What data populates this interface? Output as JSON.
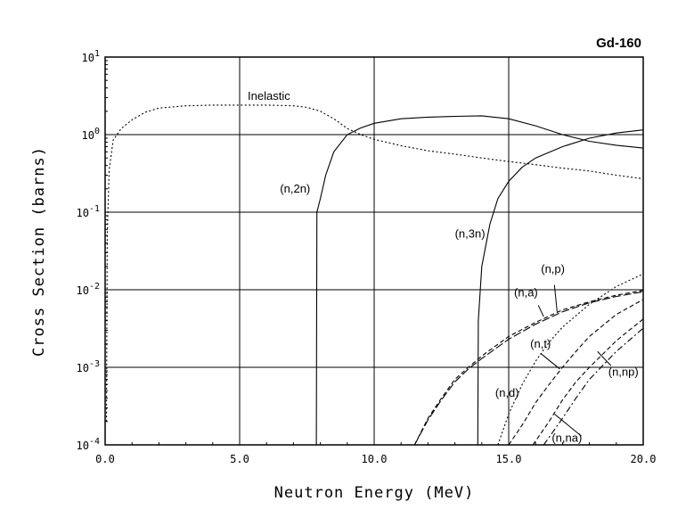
{
  "chart_data": {
    "type": "line",
    "title": "Gd-160",
    "xlabel": "Neutron Energy (MeV)",
    "ylabel": "Cross Section (barns)",
    "xlim": [
      0,
      20
    ],
    "ylim": [
      0.0001,
      10
    ],
    "yscale": "log",
    "grid": true,
    "x_ticks": [
      {
        "value": 0,
        "label": "0.0"
      },
      {
        "value": 5,
        "label": "5.0"
      },
      {
        "value": 10,
        "label": "10.0"
      },
      {
        "value": 15,
        "label": "15.0"
      },
      {
        "value": 20,
        "label": "20.0"
      }
    ],
    "y_ticks": [
      {
        "value": 0.0001,
        "mantissa": "10",
        "exponent": "-4"
      },
      {
        "value": 0.001,
        "mantissa": "10",
        "exponent": "-3"
      },
      {
        "value": 0.01,
        "mantissa": "10",
        "exponent": "-2"
      },
      {
        "value": 0.1,
        "mantissa": "10",
        "exponent": "-1"
      },
      {
        "value": 1,
        "mantissa": "10",
        "exponent": "0"
      },
      {
        "value": 10,
        "mantissa": "10",
        "exponent": "1"
      }
    ],
    "series": [
      {
        "name": "Inelastic",
        "style": "dotted",
        "label": {
          "text": "Inelastic",
          "x": 5.3,
          "y": 2.8
        },
        "points": [
          [
            0.05,
            0.0002
          ],
          [
            0.08,
            0.05
          ],
          [
            0.15,
            0.35
          ],
          [
            0.3,
            0.85
          ],
          [
            0.6,
            1.2
          ],
          [
            1.0,
            1.55
          ],
          [
            1.5,
            1.95
          ],
          [
            2.0,
            2.2
          ],
          [
            3.0,
            2.35
          ],
          [
            4.0,
            2.4
          ],
          [
            5.0,
            2.4
          ],
          [
            6.0,
            2.4
          ],
          [
            7.0,
            2.35
          ],
          [
            7.5,
            2.25
          ],
          [
            8.0,
            2.0
          ],
          [
            8.5,
            1.6
          ],
          [
            9.0,
            1.2
          ],
          [
            9.5,
            1.0
          ],
          [
            10.0,
            0.87
          ],
          [
            11.0,
            0.72
          ],
          [
            12.0,
            0.62
          ],
          [
            13.0,
            0.56
          ],
          [
            14.0,
            0.5
          ],
          [
            15.0,
            0.45
          ],
          [
            16.0,
            0.41
          ],
          [
            17.0,
            0.37
          ],
          [
            18.0,
            0.34
          ],
          [
            19.0,
            0.3
          ],
          [
            20.0,
            0.27
          ]
        ]
      },
      {
        "name": "(n,2n)",
        "style": "solid",
        "label": {
          "text": "(n,2n)",
          "x": 6.5,
          "y": 0.18
        },
        "points": [
          [
            7.85,
            0.0001
          ],
          [
            7.87,
            0.1
          ],
          [
            8.0,
            0.15
          ],
          [
            8.2,
            0.3
          ],
          [
            8.5,
            0.6
          ],
          [
            9.0,
            1.0
          ],
          [
            9.5,
            1.22
          ],
          [
            10.0,
            1.4
          ],
          [
            11.0,
            1.6
          ],
          [
            12.0,
            1.68
          ],
          [
            13.0,
            1.72
          ],
          [
            14.0,
            1.75
          ],
          [
            15.0,
            1.6
          ],
          [
            16.0,
            1.3
          ],
          [
            17.0,
            1.0
          ],
          [
            18.0,
            0.82
          ],
          [
            19.0,
            0.73
          ],
          [
            20.0,
            0.67
          ]
        ]
      },
      {
        "name": "(n,3n)",
        "style": "solid",
        "label": {
          "text": "(n,3n)",
          "x": 13.0,
          "y": 0.047
        },
        "points": [
          [
            13.85,
            0.0001
          ],
          [
            13.87,
            0.004
          ],
          [
            14.0,
            0.02
          ],
          [
            14.3,
            0.07
          ],
          [
            14.6,
            0.15
          ],
          [
            15.0,
            0.25
          ],
          [
            15.5,
            0.38
          ],
          [
            16.0,
            0.5
          ],
          [
            17.0,
            0.7
          ],
          [
            18.0,
            0.9
          ],
          [
            19.0,
            1.05
          ],
          [
            20.0,
            1.15
          ]
        ]
      },
      {
        "name": "(n,p)",
        "style": "dashed",
        "label": {
          "text": "(n,p)",
          "x": 16.2,
          "y": 0.0165
        },
        "points": [
          [
            11.5,
            0.0001
          ],
          [
            12.0,
            0.00022
          ],
          [
            12.5,
            0.0004
          ],
          [
            13.0,
            0.0007
          ],
          [
            13.5,
            0.001
          ],
          [
            14.0,
            0.0014
          ],
          [
            15.0,
            0.0025
          ],
          [
            16.0,
            0.0038
          ],
          [
            17.0,
            0.0055
          ],
          [
            18.0,
            0.007
          ],
          [
            19.0,
            0.0085
          ],
          [
            20.0,
            0.0098
          ]
        ]
      },
      {
        "name": "(n,a)",
        "style": "longdash",
        "label": {
          "text": "(n,a)",
          "x": 15.2,
          "y": 0.0082
        },
        "points": [
          [
            11.5,
            0.0001
          ],
          [
            12.0,
            0.00021
          ],
          [
            12.5,
            0.00038
          ],
          [
            13.0,
            0.00065
          ],
          [
            13.5,
            0.00095
          ],
          [
            14.0,
            0.0013
          ],
          [
            15.0,
            0.0023
          ],
          [
            16.0,
            0.0036
          ],
          [
            17.0,
            0.0052
          ],
          [
            18.0,
            0.0068
          ],
          [
            19.0,
            0.0082
          ],
          [
            20.0,
            0.0094
          ]
        ]
      },
      {
        "name": "(n,d)",
        "style": "dotted",
        "label": {
          "text": "(n,d)",
          "x": 14.5,
          "y": 0.00042
        },
        "points": [
          [
            14.6,
            0.0001
          ],
          [
            15.0,
            0.00025
          ],
          [
            15.5,
            0.0006
          ],
          [
            16.0,
            0.0012
          ],
          [
            16.5,
            0.0021
          ],
          [
            17.0,
            0.0033
          ],
          [
            18.0,
            0.0065
          ],
          [
            19.0,
            0.011
          ],
          [
            20.0,
            0.016
          ]
        ]
      },
      {
        "name": "(n,t)",
        "style": "dashed",
        "label": {
          "text": "(n,t)",
          "x": 15.8,
          "y": 0.0018
        },
        "points": [
          [
            15.0,
            0.0001
          ],
          [
            15.5,
            0.00018
          ],
          [
            16.0,
            0.00035
          ],
          [
            16.5,
            0.0006
          ],
          [
            17.0,
            0.001
          ],
          [
            17.5,
            0.0016
          ],
          [
            18.0,
            0.0025
          ],
          [
            19.0,
            0.0048
          ],
          [
            20.0,
            0.0075
          ]
        ]
      },
      {
        "name": "(n,np)",
        "style": "dashed",
        "label": {
          "text": "(n,np)",
          "x": 18.7,
          "y": 0.00078
        },
        "points": [
          [
            15.9,
            0.0001
          ],
          [
            16.5,
            0.0002
          ],
          [
            17.0,
            0.00038
          ],
          [
            17.5,
            0.00065
          ],
          [
            18.0,
            0.001
          ],
          [
            19.0,
            0.0022
          ],
          [
            20.0,
            0.0042
          ]
        ]
      },
      {
        "name": "(n,na)",
        "style": "dashdot",
        "label": {
          "text": "(n,na)",
          "x": 16.6,
          "y": 0.00011
        },
        "points": [
          [
            16.3,
            0.0001
          ],
          [
            17.0,
            0.00022
          ],
          [
            17.5,
            0.0004
          ],
          [
            18.0,
            0.0007
          ],
          [
            19.0,
            0.0016
          ],
          [
            20.0,
            0.0032
          ]
        ]
      }
    ]
  }
}
